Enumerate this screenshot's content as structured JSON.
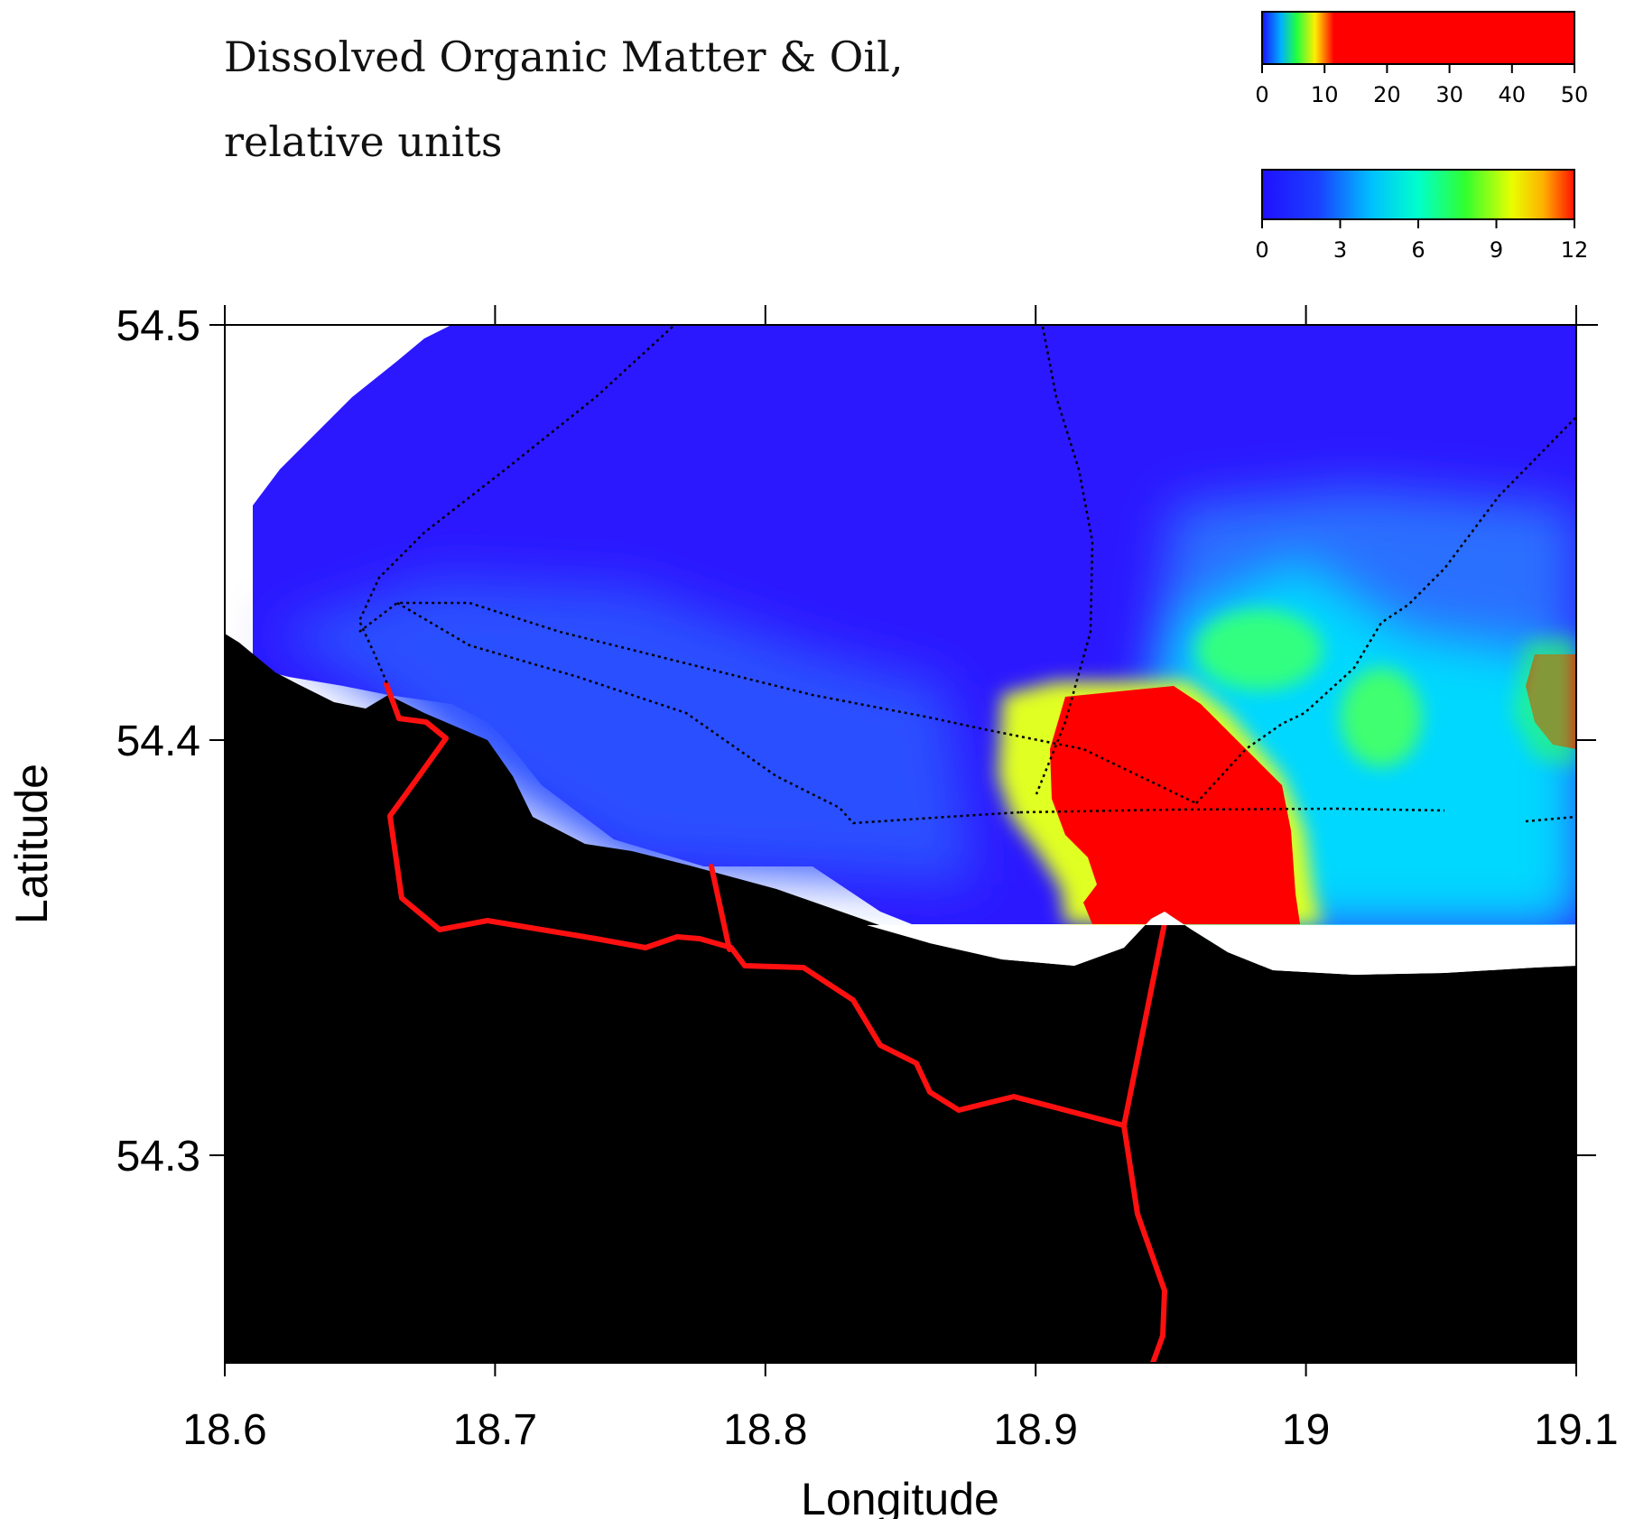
{
  "title_line1": "Dissolved Organic Matter & Oil,",
  "title_line2": "relative units",
  "colorbar_top": {
    "ticks": [
      "0",
      "10",
      "20",
      "30",
      "40",
      "50"
    ],
    "range": [
      0,
      50
    ]
  },
  "colorbar_bottom": {
    "ticks": [
      "0",
      "3",
      "6",
      "9",
      "12"
    ],
    "range": [
      0,
      12
    ]
  },
  "axes": {
    "xlabel": "Longitude",
    "ylabel": "Latitude",
    "x_ticks": [
      "18.6",
      "18.7",
      "18.8",
      "18.9",
      "19",
      "19.1"
    ],
    "y_ticks": [
      "54.5",
      "54.4",
      "54.3"
    ],
    "xlim": [
      18.6,
      19.1
    ],
    "ylim": [
      54.25,
      54.5
    ]
  },
  "colors": {
    "land": "#000000",
    "low": "#2a14ff",
    "high": "#ff0000",
    "roads": "#ff1010",
    "tracks": "#000000"
  }
}
